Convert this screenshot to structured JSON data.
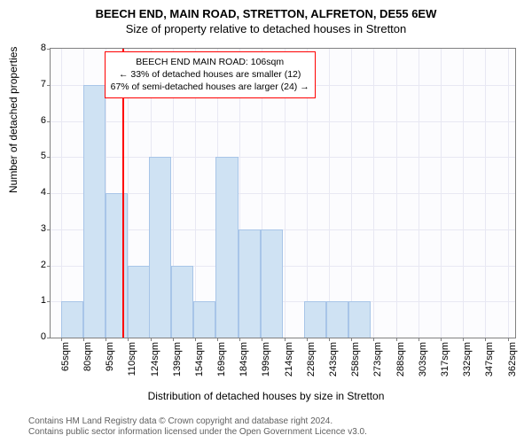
{
  "title_main": "BEECH END, MAIN ROAD, STRETTON, ALFRETON, DE55 6EW",
  "title_sub": "Size of property relative to detached houses in Stretton",
  "y_axis_label": "Number of detached properties",
  "x_axis_label": "Distribution of detached houses by size in Stretton",
  "footer_line1": "Contains HM Land Registry data © Crown copyright and database right 2024.",
  "footer_line2": "Contains public sector information licensed under the Open Government Licence v3.0.",
  "chart": {
    "type": "histogram",
    "background_color": "#fcfcfe",
    "grid_color": "#e8e8f3",
    "border_color": "#808080",
    "bar_fill": "#cfe2f3",
    "bar_stroke": "#a8c5e8",
    "bar_width_ratio": 1.0,
    "ylim": [
      0,
      8
    ],
    "ytick_step": 1,
    "x_min": 58,
    "x_max": 370,
    "x_tick_start": 65,
    "x_tick_step": 15,
    "x_tick_unit": "sqm",
    "x_tick_labels": [
      "65sqm",
      "80sqm",
      "95sqm",
      "110sqm",
      "124sqm",
      "139sqm",
      "154sqm",
      "169sqm",
      "184sqm",
      "199sqm",
      "214sqm",
      "228sqm",
      "243sqm",
      "258sqm",
      "273sqm",
      "288sqm",
      "303sqm",
      "317sqm",
      "332sqm",
      "347sqm",
      "362sqm"
    ],
    "bars": [
      {
        "x": 65,
        "count": 1
      },
      {
        "x": 80,
        "count": 7
      },
      {
        "x": 95,
        "count": 4
      },
      {
        "x": 110,
        "count": 2
      },
      {
        "x": 124,
        "count": 5
      },
      {
        "x": 139,
        "count": 2
      },
      {
        "x": 154,
        "count": 1
      },
      {
        "x": 169,
        "count": 5
      },
      {
        "x": 184,
        "count": 3
      },
      {
        "x": 199,
        "count": 3
      },
      {
        "x": 214,
        "count": 0
      },
      {
        "x": 228,
        "count": 1
      },
      {
        "x": 243,
        "count": 1
      },
      {
        "x": 258,
        "count": 1
      },
      {
        "x": 273,
        "count": 0
      },
      {
        "x": 288,
        "count": 0
      },
      {
        "x": 303,
        "count": 0
      },
      {
        "x": 317,
        "count": 0
      },
      {
        "x": 332,
        "count": 0
      },
      {
        "x": 347,
        "count": 0
      },
      {
        "x": 362,
        "count": 0
      }
    ],
    "reference_line": {
      "x": 106,
      "color": "#ff0000"
    },
    "annotation": {
      "line1": "BEECH END MAIN ROAD: 106sqm",
      "line2": "← 33% of detached houses are smaller (12)",
      "line3": "67% of semi-detached houses are larger (24) →",
      "border_color": "#ff0000",
      "background": "#ffffff",
      "fontsize": 10.5,
      "x": 106,
      "y_top_value": 7.9
    }
  }
}
